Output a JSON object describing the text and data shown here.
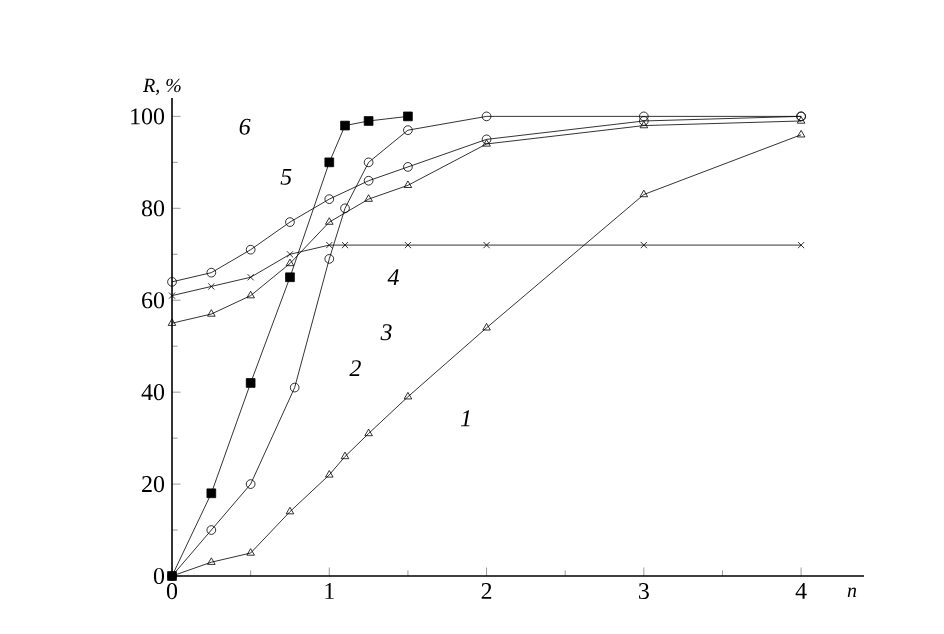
{
  "chart_data": {
    "type": "line",
    "xlabel": "n",
    "ylabel": "R, %",
    "xlim": [
      0,
      4.4
    ],
    "ylim": [
      0,
      104
    ],
    "xticks": [
      0,
      1,
      2,
      3,
      4
    ],
    "yticks": [
      0,
      20,
      40,
      60,
      80,
      100
    ],
    "grid": false,
    "series": [
      {
        "color": "#000000",
        "marker": "square",
        "x": [
          0,
          0.25,
          0.5,
          0.75,
          1.0,
          1.1,
          1.25,
          1.5
        ],
        "values": [
          0,
          18,
          42,
          65,
          90,
          98,
          99,
          100
        ]
      },
      {
        "color": "#000000",
        "marker": "circle",
        "x": [
          0,
          0.25,
          0.5,
          0.78,
          1.0,
          1.1,
          1.25,
          1.5,
          2,
          3,
          4
        ],
        "values": [
          0,
          10,
          20,
          41,
          69,
          80,
          90,
          97,
          100,
          100,
          100
        ]
      },
      {
        "color": "#000000",
        "marker": "triangle",
        "x": [
          0,
          0.25,
          0.5,
          0.75,
          1.0,
          1.1,
          1.25,
          1.5,
          2,
          3,
          4
        ],
        "values": [
          0,
          3,
          5,
          14,
          22,
          26,
          31,
          39,
          54,
          83,
          96
        ]
      },
      {
        "color": "#000000",
        "marker": "cross",
        "x": [
          0,
          0.25,
          0.5,
          0.75,
          1.0,
          1.1,
          1.5,
          2,
          3,
          4
        ],
        "values": [
          61,
          63,
          65,
          70,
          72,
          72,
          72,
          72,
          72,
          72
        ]
      },
      {
        "color": "#000000",
        "marker": "triangle",
        "x": [
          0,
          0.25,
          0.5,
          0.75,
          1.0,
          1.25,
          1.5,
          2,
          3,
          4
        ],
        "values": [
          55,
          57,
          61,
          68,
          77,
          82,
          85,
          94,
          98,
          99
        ]
      },
      {
        "color": "#000000",
        "marker": "circle",
        "x": [
          0,
          0.25,
          0.5,
          0.75,
          1.0,
          1.25,
          1.5,
          2,
          3,
          4
        ],
        "values": [
          64,
          66,
          71,
          77,
          82,
          86,
          89,
          95,
          99,
          100
        ]
      }
    ],
    "annotations": [
      "1",
      "2",
      "3",
      "4",
      "5",
      "6"
    ]
  }
}
